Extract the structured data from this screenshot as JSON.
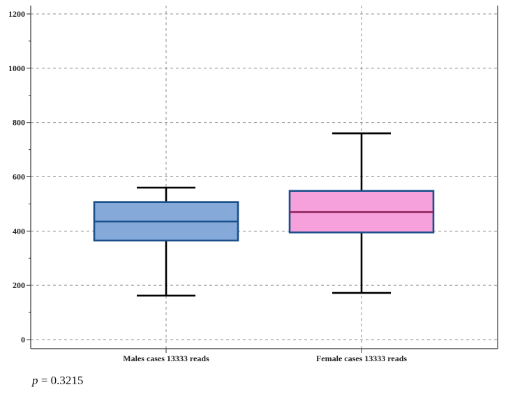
{
  "chart_data": {
    "type": "box",
    "ylim": [
      0,
      1200
    ],
    "yticks": [
      0,
      200,
      400,
      600,
      800,
      1000,
      1200
    ],
    "grid": true,
    "xlabel": "",
    "ylabel": "",
    "categories": [
      "Males cases 13333 reads",
      "Female cases 13333 reads"
    ],
    "boxes": [
      {
        "label": "Males cases 13333 reads",
        "whisker_low": 162,
        "q1": 365,
        "median": 435,
        "q3": 507,
        "whisker_high": 560,
        "fill": "#85a9d9",
        "stroke": "#1a4f8a",
        "median_color": "#1a4f8a"
      },
      {
        "label": "Female cases 13333 reads",
        "whisker_low": 172,
        "q1": 395,
        "median": 470,
        "q3": 548,
        "whisker_high": 760,
        "fill": "#f7a1dc",
        "stroke": "#1a4f8a",
        "median_color": "#8a1f5a"
      }
    ],
    "annotation": {
      "symbol": "p",
      "rest": " = 0.3215"
    }
  }
}
